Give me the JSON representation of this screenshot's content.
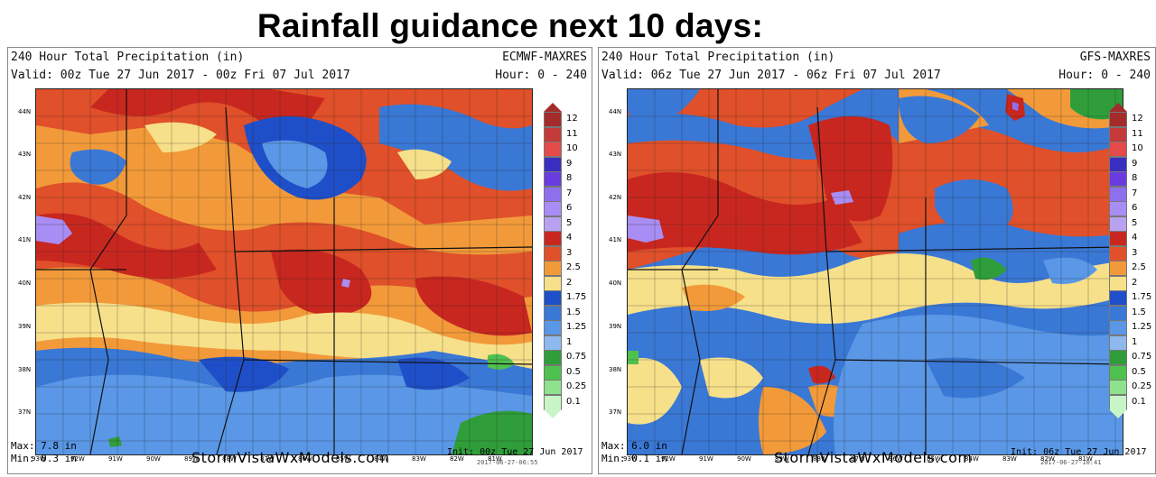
{
  "title": "Rainfall guidance next 10 days:",
  "legend_colors": {
    "12": "#a52a2a",
    "11": "#c43a3a",
    "10": "#e44a4a",
    "9": "#3a2ec0",
    "8": "#6a3ce0",
    "7": "#8e70ee",
    "6": "#a88ef4",
    "5": "#b8a2f0",
    "4": "#c8271f",
    "3": "#e0502a",
    "2.5": "#f29a3a",
    "2": "#f7e08a",
    "1.75": "#1f4fc8",
    "1.5": "#3a78d6",
    "1.25": "#5a97e6",
    "1": "#8fb9ee",
    "0.75": "#2f9e3a",
    "0.5": "#4fc14f",
    "0.25": "#8ee28e",
    "0.1": "#c8f5c8"
  },
  "panels": [
    {
      "id": "left",
      "header_line1": "240 Hour Total Precipitation (in)",
      "header_model": "ECMWF-MAXRES",
      "header_line2": "Valid: 00z Tue 27 Jun 2017 - 00z Fri 07 Jul 2017",
      "header_hour": "Hour: 0 - 240",
      "max": "Max: 7.8 in",
      "min": "Min: 0.3 in",
      "brand": "StormVistaWxModels.com",
      "init": "Init: 00z Tue 27 Jun 2017",
      "stamp": "2017-06-27-06:55"
    },
    {
      "id": "right",
      "header_line1": "240 Hour Total Precipitation (in)",
      "header_model": "GFS-MAXRES",
      "header_line2": "Valid: 06z Tue 27 Jun 2017 - 06z Fri 07 Jul 2017",
      "header_hour": "Hour: 0 - 240",
      "max": "Max: 6.0 in",
      "min": "Min: 0.1 in",
      "brand": "StormVistaWxModels.com",
      "init": "Init: 06z Tue 27 Jun 2017",
      "stamp": "2017-06-27-10:41"
    }
  ],
  "lat_labels": [
    "44N",
    "43N",
    "42N",
    "41N",
    "40N",
    "39N",
    "38N",
    "37N"
  ],
  "lon_labels": [
    "93W",
    "92W",
    "91W",
    "90W",
    "89W",
    "88W",
    "87W",
    "86W",
    "85W",
    "84W",
    "83W",
    "82W",
    "81W"
  ],
  "colorbar_labels": [
    "12",
    "11",
    "10",
    "9",
    "8",
    "7",
    "6",
    "5",
    "4",
    "3",
    "2.5",
    "2",
    "1.75",
    "1.5",
    "1.25",
    "1",
    "0.75",
    "0.5",
    "0.25",
    "0.1"
  ]
}
